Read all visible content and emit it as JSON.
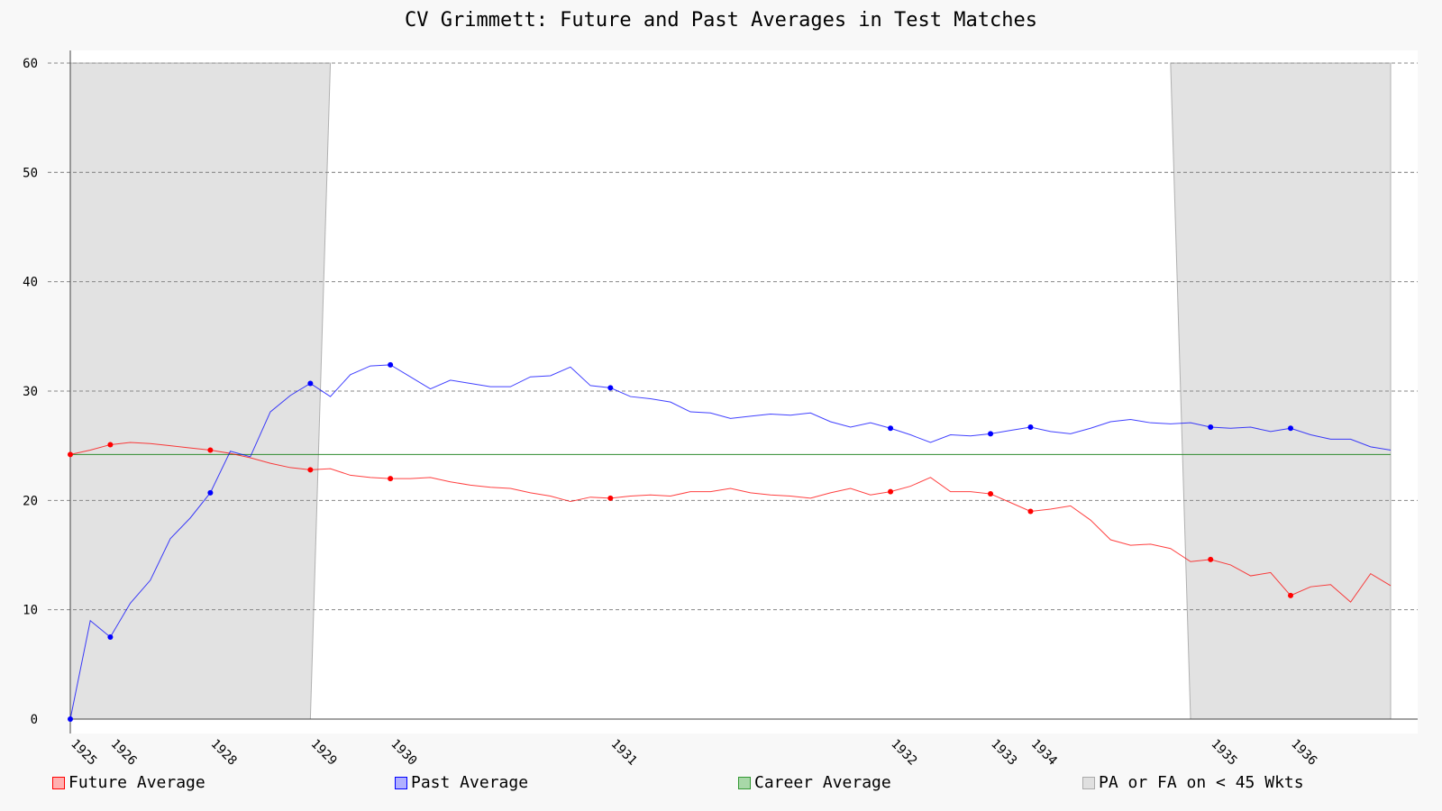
{
  "chart_data": {
    "type": "line",
    "title": "CV Grimmett: Future and Past Averages in Test Matches",
    "ylim": [
      0,
      60
    ],
    "yticks": [
      0,
      10,
      20,
      30,
      40,
      50,
      60
    ],
    "xlim": [
      0,
      66
    ],
    "x_tick_labels": [
      {
        "x": 0,
        "label": "1925"
      },
      {
        "x": 2,
        "label": "1926"
      },
      {
        "x": 7,
        "label": "1928"
      },
      {
        "x": 12,
        "label": "1929"
      },
      {
        "x": 16,
        "label": "1930"
      },
      {
        "x": 27,
        "label": "1931"
      },
      {
        "x": 41,
        "label": "1932"
      },
      {
        "x": 46,
        "label": "1933"
      },
      {
        "x": 48,
        "label": "1934"
      },
      {
        "x": 57,
        "label": "1935"
      },
      {
        "x": 61,
        "label": "1936"
      }
    ],
    "grid": true,
    "legend_position": "bottom",
    "career_average": 24.2,
    "shaded_regions": [
      {
        "top": [
          0,
          13
        ],
        "bottom": [
          0,
          12
        ]
      },
      {
        "top": [
          55,
          66
        ],
        "bottom": [
          56,
          66
        ]
      }
    ],
    "series": [
      {
        "name": "Future Average",
        "color": "#ff0000",
        "values": [
          24.2,
          24.6,
          25.1,
          25.3,
          25.2,
          25.0,
          24.8,
          24.6,
          24.3,
          23.9,
          23.4,
          23.0,
          22.8,
          22.9,
          22.3,
          22.1,
          22.0,
          22.0,
          22.1,
          21.7,
          21.4,
          21.2,
          21.1,
          20.7,
          20.4,
          19.9,
          20.3,
          20.2,
          20.4,
          20.5,
          20.4,
          20.8,
          20.8,
          21.1,
          20.7,
          20.5,
          20.4,
          20.2,
          20.7,
          21.1,
          20.5,
          20.8,
          21.3,
          22.1,
          20.8,
          20.8,
          20.6,
          19.8,
          19.0,
          19.2,
          19.5,
          18.2,
          16.4,
          15.9,
          16.0,
          15.6,
          14.4,
          14.6,
          14.1,
          13.1,
          13.4,
          11.3,
          12.1,
          12.3,
          10.7,
          13.3,
          12.2
        ],
        "markers": [
          0,
          2,
          7,
          12,
          16,
          27,
          41,
          46,
          48,
          57,
          61
        ]
      },
      {
        "name": "Past Average",
        "color": "#0000ff",
        "values": [
          0,
          9.0,
          7.5,
          10.6,
          12.7,
          16.5,
          18.4,
          20.7,
          24.5,
          24.0,
          28.1,
          29.6,
          30.7,
          29.5,
          31.5,
          32.3,
          32.4,
          31.3,
          30.2,
          31.0,
          30.7,
          30.4,
          30.4,
          31.3,
          31.4,
          32.2,
          30.5,
          30.3,
          29.5,
          29.3,
          29.0,
          28.1,
          28.0,
          27.5,
          27.7,
          27.9,
          27.8,
          28.0,
          27.2,
          26.7,
          27.1,
          26.6,
          26.0,
          25.3,
          26.0,
          25.9,
          26.1,
          26.4,
          26.7,
          26.3,
          26.1,
          26.6,
          27.2,
          27.4,
          27.1,
          27.0,
          27.1,
          26.7,
          26.6,
          26.7,
          26.3,
          26.6,
          26.0,
          25.6,
          25.6,
          24.9,
          24.6
        ],
        "markers": [
          0,
          2,
          7,
          12,
          16,
          27,
          41,
          46,
          48,
          57,
          61
        ]
      }
    ],
    "legend": [
      {
        "label": "Future Average",
        "fill": "#ffb0b0",
        "stroke": "#ff0000"
      },
      {
        "label": "Past Average",
        "fill": "#b0b0ff",
        "stroke": "#0000ff"
      },
      {
        "label": "Career Average",
        "fill": "#a8d8a8",
        "stroke": "#339933"
      },
      {
        "label": "PA or FA on < 45 Wkts",
        "fill": "#e0e0e0",
        "stroke": "#aaaaaa"
      }
    ]
  }
}
